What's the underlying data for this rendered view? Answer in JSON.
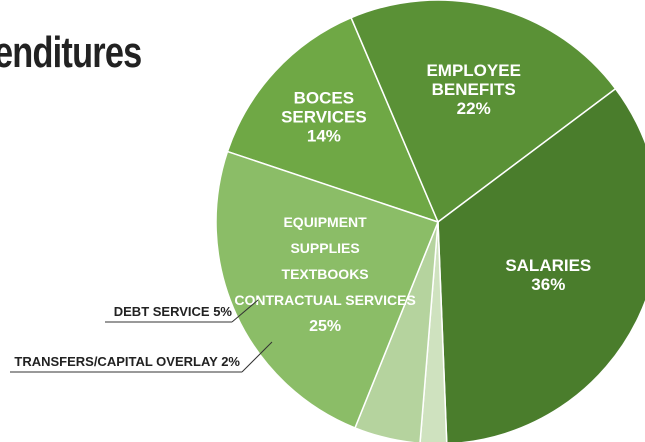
{
  "title": "enditures",
  "chart_data": {
    "type": "pie",
    "categories": [
      "BOCES SERVICES",
      "EMPLOYEE BENEFITS",
      "SALARIES",
      "TRANSFERS/CAPITAL OVERLAY",
      "DEBT SERVICE",
      "EQUIPMENT SUPPLIES TEXTBOOKS CONTRACTUAL SERVICES"
    ],
    "values": [
      14,
      22,
      36,
      2,
      5,
      25
    ],
    "value_labels": [
      "14%",
      "22%",
      "36%",
      "2%",
      "5%",
      "25%"
    ],
    "slice_text": [
      [
        "BOCES",
        "SERVICES"
      ],
      [
        "EMPLOYEE",
        "BENEFITS"
      ],
      [
        "SALARIES"
      ],
      [],
      [],
      [
        "EQUIPMENT",
        "SUPPLIES",
        "TEXTBOOKS",
        "CONTRACTUAL SERVICES"
      ]
    ],
    "callouts": [
      "DEBT SERVICE  5%",
      "TRANSFERS/CAPITAL OVERLAY  2%"
    ],
    "colors": [
      "#6fa845",
      "#5a9136",
      "#4a7d2c",
      "#cfe2bf",
      "#b5d39e",
      "#8bbd67"
    ]
  }
}
